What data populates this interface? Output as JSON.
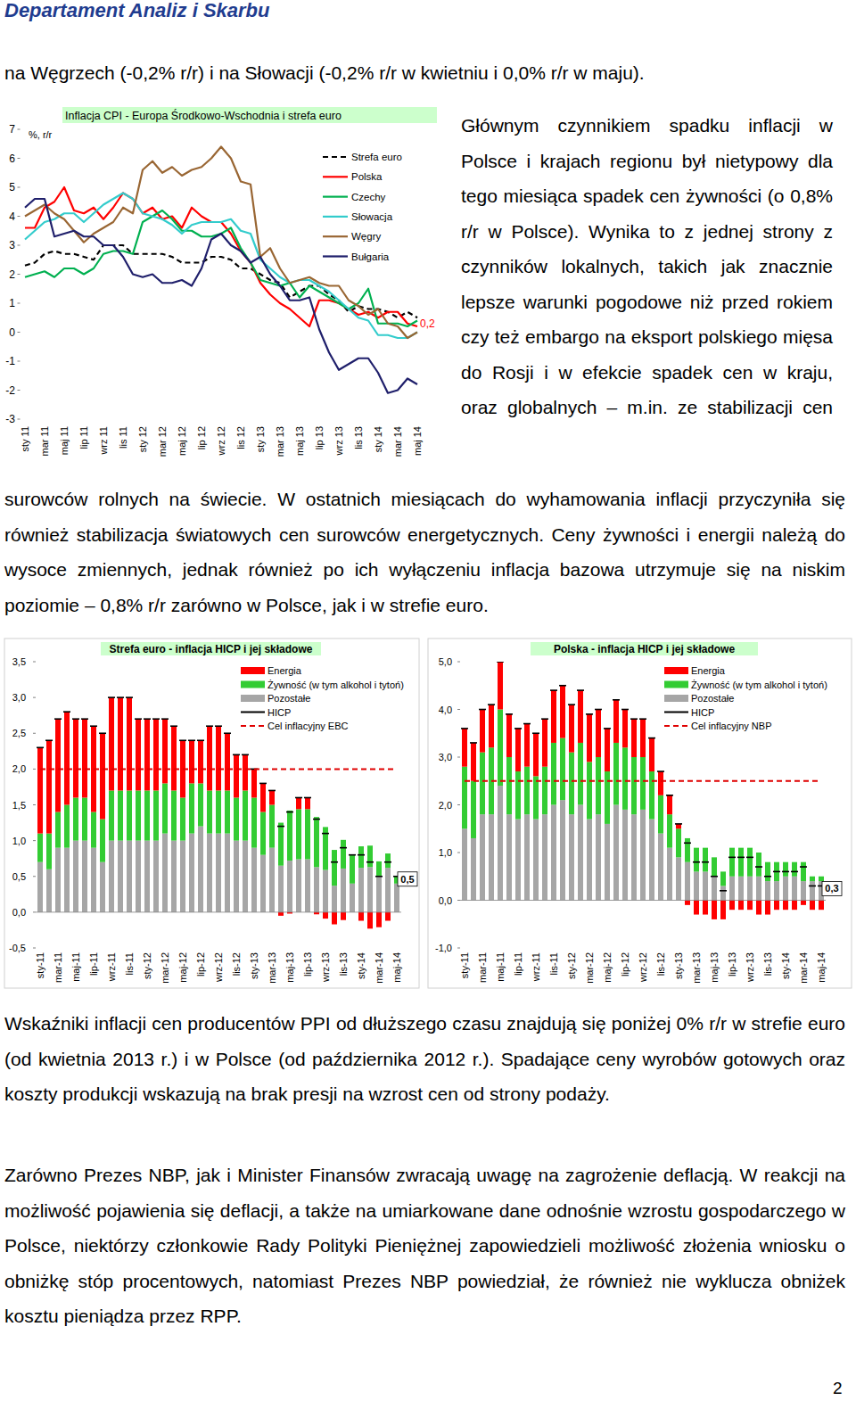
{
  "header": "Departament Analiz i Skarbu",
  "text": {
    "intro": "na Węgrzech (-0,2% r/r) i na Słowacji (-0,2% r/r w kwietniu i 0,0% r/r w maju).",
    "column": "Głównym czynnikiem spadku inflacji w Polsce i krajach regionu był nietypowy dla tego miesiąca spadek cen żywności (o 0,8% r/r w Polsce). Wynika to z jednej strony z czynników lokalnych, takich jak znacznie lepsze warunki pogodowe niż przed rokiem czy też embargo na eksport polskiego mięsa do Rosji i w efekcie spadek cen w kraju, oraz globalnych – m.in. ze stabilizacji cen",
    "continuation": "surowców rolnych na świecie. W ostatnich miesiącach do wyhamowania inflacji przyczyniła się również stabilizacja światowych cen surowców energetycznych. Ceny żywności i energii należą do wysoce zmiennych, jednak również po ich wyłączeniu inflacja bazowa utrzymuje się na niskim poziomie – 0,8% r/r zarówno w Polsce, jak i w strefie euro.",
    "para2": "Wskaźniki inflacji cen producentów PPI od dłuższego czasu znajdują się poniżej 0% r/r w strefie euro (od kwietnia 2013 r.) i w Polsce (od października 2012 r.). Spadające ceny wyrobów gotowych oraz koszty produkcji wskazują na brak presji na wzrost cen od strony podaży.",
    "para3": "Zarówno Prezes NBP, jak i Minister Finansów zwracają uwagę na zagrożenie deflacją. W reakcji na możliwość pojawienia się deflacji, a także na umiarkowane dane odnośnie wzrostu gospodarczego w Polsce, niektórzy członkowie Rady Polityki Pieniężnej zapowiedzieli możliwość złożenia wniosku o obniżkę stóp procentowych, natomiast Prezes NBP powiedział, że również nie wyklucza obniżek kosztu pieniądza przez RPP."
  },
  "page_number": "2",
  "chart_data": [
    {
      "type": "line",
      "title": "Inflacja CPI - Europa Środkowo-Wschodnia i strefa euro",
      "y_label": "%, r/r",
      "grid": false,
      "legend": "upper right",
      "categories": [
        "sty 11",
        null,
        "mar 11",
        null,
        "maj 11",
        null,
        "lip 11",
        null,
        "wrz 11",
        null,
        "lis 11",
        null,
        "sty 12",
        null,
        "mar 12",
        null,
        "maj 12",
        null,
        "lip 12",
        null,
        "wrz 12",
        null,
        "lis 12",
        null,
        "sty 13",
        null,
        "mar 13",
        null,
        "maj 13",
        null,
        "lip 13",
        null,
        "wrz 13",
        null,
        "lis 13",
        null,
        "sty 14",
        null,
        "mar 14",
        null,
        "maj 14"
      ],
      "ylim": [
        -3,
        7
      ],
      "yticks": [
        -3,
        -2,
        -1,
        0,
        1,
        2,
        3,
        4,
        5,
        6,
        7
      ],
      "annotations": [
        "0,2"
      ],
      "series": [
        {
          "name": "Strefa euro",
          "color": "#000000",
          "line_style": "dashed",
          "values": [
            2.3,
            2.4,
            2.7,
            2.8,
            2.7,
            2.7,
            2.6,
            2.5,
            3.0,
            3.0,
            3.0,
            2.7,
            2.7,
            2.7,
            2.7,
            2.6,
            2.4,
            2.4,
            2.4,
            2.6,
            2.6,
            2.5,
            2.2,
            2.2,
            2.0,
            1.8,
            1.7,
            1.2,
            1.4,
            1.6,
            1.6,
            1.3,
            1.1,
            0.7,
            0.9,
            0.8,
            0.8,
            0.7,
            0.5,
            0.7,
            0.5
          ]
        },
        {
          "name": "Polska",
          "color": "#ff0000",
          "line_style": "solid",
          "values": [
            3.6,
            3.6,
            4.3,
            4.5,
            5.0,
            4.2,
            4.1,
            4.3,
            3.9,
            4.3,
            4.8,
            4.6,
            4.1,
            4.3,
            3.9,
            4.0,
            3.6,
            4.3,
            4.0,
            3.8,
            3.8,
            3.4,
            2.8,
            2.4,
            1.7,
            1.3,
            1.0,
            0.8,
            0.5,
            0.2,
            1.1,
            1.1,
            1.0,
            0.8,
            0.6,
            0.7,
            0.5,
            0.7,
            0.7,
            0.3,
            0.2
          ]
        },
        {
          "name": "Czechy",
          "color": "#00b050",
          "line_style": "solid",
          "values": [
            1.9,
            2.0,
            2.1,
            1.9,
            2.2,
            2.2,
            2.0,
            2.2,
            2.7,
            2.8,
            2.8,
            2.7,
            3.8,
            4.0,
            4.2,
            3.9,
            3.5,
            3.5,
            3.3,
            3.3,
            3.4,
            3.6,
            2.9,
            2.4,
            1.8,
            1.7,
            1.6,
            1.7,
            1.2,
            1.6,
            1.4,
            1.2,
            1.0,
            0.8,
            1.0,
            1.5,
            0.3,
            0.3,
            0.3,
            0.2,
            0.4
          ]
        },
        {
          "name": "Słowacja",
          "color": "#33cccc",
          "line_style": "solid",
          "values": [
            3.2,
            3.5,
            3.8,
            3.9,
            4.1,
            4.1,
            3.8,
            4.1,
            4.4,
            4.6,
            4.8,
            4.6,
            4.1,
            4.0,
            3.9,
            3.7,
            3.4,
            3.7,
            3.8,
            3.8,
            3.8,
            3.9,
            3.5,
            3.4,
            2.5,
            2.2,
            1.9,
            1.7,
            1.8,
            1.8,
            1.6,
            1.4,
            1.1,
            0.8,
            0.5,
            0.4,
            -0.1,
            -0.1,
            -0.2,
            -0.2,
            0.0
          ]
        },
        {
          "name": "Węgry",
          "color": "#996633",
          "line_style": "solid",
          "values": [
            4.0,
            4.2,
            4.4,
            4.1,
            3.9,
            3.5,
            3.1,
            3.4,
            3.6,
            3.8,
            4.3,
            4.1,
            5.6,
            5.9,
            5.5,
            5.7,
            5.4,
            5.6,
            5.7,
            6.0,
            6.4,
            6.0,
            5.2,
            5.1,
            2.6,
            2.9,
            2.2,
            1.7,
            1.8,
            1.9,
            1.7,
            1.6,
            1.6,
            1.1,
            0.9,
            0.6,
            0.8,
            0.3,
            0.2,
            -0.2,
            0.0
          ]
        },
        {
          "name": "Bułgaria",
          "color": "#1f1f6b",
          "line_style": "solid",
          "values": [
            4.3,
            4.6,
            4.6,
            3.3,
            3.4,
            3.5,
            3.3,
            3.3,
            3.0,
            3.0,
            2.6,
            2.0,
            1.9,
            2.0,
            1.7,
            1.7,
            1.8,
            1.6,
            2.2,
            3.2,
            3.4,
            3.0,
            2.8,
            2.4,
            2.6,
            2.0,
            1.6,
            1.1,
            1.1,
            1.2,
            0.1,
            -0.7,
            -1.3,
            -1.1,
            -0.9,
            -0.9,
            -1.4,
            -2.1,
            -2.0,
            -1.6,
            -1.8
          ]
        }
      ]
    },
    {
      "type": "bar",
      "stacked": true,
      "title": "Strefa euro - inflacja HICP i jej składowe",
      "grid": false,
      "legend": "upper right",
      "categories": [
        "sty-11",
        null,
        "mar-11",
        null,
        "maj-11",
        null,
        "lip-11",
        null,
        "wrz-11",
        null,
        "lis-11",
        null,
        "sty-12",
        null,
        "mar-12",
        null,
        "maj-12",
        null,
        "lip-12",
        null,
        "wrz-12",
        null,
        "lis-12",
        null,
        "sty-13",
        null,
        "mar-13",
        null,
        "maj-13",
        null,
        "lip-13",
        null,
        "wrz-13",
        null,
        "lis-13",
        null,
        "sty-14",
        null,
        "mar-14",
        null,
        "maj-14"
      ],
      "ylim": [
        -0.5,
        3.5
      ],
      "yticks": [
        {
          "value": -0.5,
          "label": "-0,5"
        },
        {
          "value": 0,
          "label": "0,0"
        },
        {
          "value": 0.5,
          "label": "0,5"
        },
        {
          "value": 1,
          "label": "1,0"
        },
        {
          "value": 1.5,
          "label": "1,5"
        },
        {
          "value": 2,
          "label": "2,0"
        },
        {
          "value": 2.5,
          "label": "2,5"
        },
        {
          "value": 3,
          "label": "3,0"
        },
        {
          "value": 3.5,
          "label": "3,5"
        }
      ],
      "annotations": [
        "0,5"
      ],
      "series": [
        {
          "name": "Energia",
          "color": "#ff0000",
          "values": [
            1.2,
            1.3,
            1.3,
            1.3,
            1.1,
            1.1,
            1.2,
            1.2,
            1.3,
            1.3,
            1.3,
            1.0,
            1.0,
            1.0,
            0.9,
            0.9,
            0.8,
            0.6,
            0.6,
            0.9,
            0.9,
            0.8,
            0.6,
            0.5,
            0.4,
            0.4,
            0.2,
            -0.05,
            -0.02,
            0.16,
            0.16,
            -0.03,
            -0.09,
            -0.17,
            -0.11,
            0.0,
            -0.12,
            -0.23,
            -0.21,
            -0.12,
            0.0
          ]
        },
        {
          "name": "Żywność (w tym alkohol i tytoń)",
          "color": "#33cc33",
          "values": [
            0.4,
            0.5,
            0.5,
            0.6,
            0.6,
            0.6,
            0.5,
            0.6,
            0.7,
            0.7,
            0.7,
            0.7,
            0.7,
            0.7,
            0.7,
            0.7,
            0.6,
            0.7,
            0.6,
            0.6,
            0.6,
            0.6,
            0.6,
            0.7,
            0.7,
            0.6,
            0.6,
            0.6,
            0.7,
            0.7,
            0.7,
            0.7,
            0.6,
            0.5,
            0.4,
            0.4,
            0.3,
            0.3,
            0.2,
            0.2,
            0.1
          ]
        },
        {
          "name": "Pozostałe",
          "color": "#a6a6a6",
          "values": [
            0.7,
            0.6,
            0.9,
            0.9,
            1.0,
            1.0,
            0.9,
            0.7,
            1.0,
            1.0,
            1.0,
            1.0,
            1.0,
            1.0,
            1.1,
            1.0,
            1.0,
            1.1,
            1.2,
            1.1,
            1.1,
            1.1,
            1.0,
            1.0,
            0.9,
            0.8,
            0.9,
            0.65,
            0.72,
            0.74,
            0.74,
            0.63,
            0.59,
            0.37,
            0.61,
            0.4,
            0.62,
            0.63,
            0.51,
            0.62,
            0.4
          ]
        },
        {
          "name": "HICP",
          "type": "scatter",
          "marker": "dash",
          "color": "#000000",
          "values": [
            2.3,
            2.4,
            2.7,
            2.8,
            2.7,
            2.7,
            2.6,
            2.5,
            3.0,
            3.0,
            3.0,
            2.7,
            2.7,
            2.7,
            2.7,
            2.6,
            2.4,
            2.4,
            2.4,
            2.6,
            2.6,
            2.5,
            2.2,
            2.2,
            2.0,
            1.8,
            1.7,
            1.2,
            1.4,
            1.6,
            1.6,
            1.3,
            1.1,
            0.7,
            0.9,
            0.8,
            0.8,
            0.7,
            0.5,
            0.7,
            0.5
          ]
        },
        {
          "name": "Cel inflacyjny EBC",
          "type": "line",
          "line_style": "dashed",
          "color": "#e00000",
          "values": [
            2,
            2,
            2,
            2,
            2,
            2,
            2,
            2,
            2,
            2,
            2,
            2,
            2,
            2,
            2,
            2,
            2,
            2,
            2,
            2,
            2,
            2,
            2,
            2,
            2,
            2,
            2,
            2,
            2,
            2,
            2,
            2,
            2,
            2,
            2,
            2,
            2,
            2,
            2,
            2,
            2
          ]
        }
      ]
    },
    {
      "type": "bar",
      "stacked": true,
      "title": "Polska - inflacja HICP i jej składowe",
      "grid": false,
      "legend": "upper right",
      "categories": [
        "sty-11",
        null,
        "mar-11",
        null,
        "maj-11",
        null,
        "lip-11",
        null,
        "wrz-11",
        null,
        "lis-11",
        null,
        "sty-12",
        null,
        "mar-12",
        null,
        "maj-12",
        null,
        "lip-12",
        null,
        "wrz-12",
        null,
        "lis-12",
        null,
        "sty-13",
        null,
        "mar-13",
        null,
        "maj-13",
        null,
        "lip-13",
        null,
        "wrz-13",
        null,
        "lis-13",
        null,
        "sty-14",
        null,
        "mar-14",
        null,
        "maj-14"
      ],
      "ylim": [
        -1,
        5
      ],
      "yticks": [
        {
          "value": -1,
          "label": "-1,0"
        },
        {
          "value": 0,
          "label": "0,0"
        },
        {
          "value": 1,
          "label": "1,0"
        },
        {
          "value": 2,
          "label": "2,0"
        },
        {
          "value": 3,
          "label": "3,0"
        },
        {
          "value": 4,
          "label": "4,0"
        },
        {
          "value": 5,
          "label": "5,0"
        }
      ],
      "annotations": [
        "0,3"
      ],
      "series": [
        {
          "name": "Energia",
          "color": "#ff0000",
          "values": [
            0.8,
            0.8,
            0.9,
            0.9,
            1.0,
            0.9,
            0.9,
            0.9,
            0.9,
            1.0,
            1.1,
            1.1,
            1.0,
            1.1,
            1.0,
            1.0,
            0.9,
            0.9,
            0.8,
            0.8,
            0.8,
            0.7,
            0.5,
            0.4,
            0.1,
            -0.1,
            -0.3,
            -0.3,
            -0.4,
            -0.4,
            -0.2,
            -0.2,
            -0.2,
            -0.3,
            -0.3,
            -0.2,
            -0.2,
            -0.2,
            -0.1,
            -0.2,
            -0.2
          ]
        },
        {
          "name": "Żywność (w tym alkohol i tytoń)",
          "color": "#33cc33",
          "values": [
            1.3,
            1.2,
            1.3,
            1.4,
            1.6,
            1.2,
            1.0,
            1.0,
            0.9,
            1.0,
            1.3,
            1.3,
            1.3,
            1.3,
            1.2,
            1.2,
            1.1,
            1.3,
            1.3,
            1.2,
            1.1,
            1.0,
            0.8,
            0.7,
            0.6,
            0.5,
            0.5,
            0.5,
            0.4,
            0.3,
            0.6,
            0.6,
            0.6,
            0.5,
            0.4,
            0.4,
            0.3,
            0.3,
            0.4,
            0.1,
            0.1
          ]
        },
        {
          "name": "Pozostałe",
          "color": "#a6a6a6",
          "values": [
            1.5,
            1.3,
            1.8,
            1.8,
            2.4,
            1.8,
            1.7,
            1.8,
            1.7,
            1.8,
            2.0,
            2.1,
            1.8,
            2.0,
            1.7,
            1.8,
            1.6,
            2.0,
            1.9,
            1.8,
            1.9,
            1.7,
            1.4,
            1.1,
            0.9,
            0.8,
            0.6,
            0.6,
            0.5,
            0.3,
            0.5,
            0.5,
            0.5,
            0.5,
            0.4,
            0.4,
            0.5,
            0.5,
            0.4,
            0.4,
            0.4
          ]
        },
        {
          "name": "HICP",
          "type": "scatter",
          "marker": "dash",
          "color": "#000000",
          "values": [
            3.6,
            3.3,
            4.0,
            4.1,
            5.0,
            3.9,
            3.6,
            3.7,
            3.5,
            3.8,
            4.4,
            4.5,
            4.1,
            4.4,
            3.9,
            4.0,
            3.6,
            4.2,
            4.0,
            3.8,
            3.8,
            3.4,
            2.7,
            2.2,
            1.6,
            1.2,
            0.8,
            0.8,
            0.5,
            0.2,
            0.9,
            0.9,
            0.9,
            0.7,
            0.5,
            0.6,
            0.6,
            0.6,
            0.7,
            0.3,
            0.3
          ]
        },
        {
          "name": "Cel inflacyjny NBP",
          "type": "line",
          "line_style": "dashed",
          "color": "#e00000",
          "values": [
            2.5,
            2.5,
            2.5,
            2.5,
            2.5,
            2.5,
            2.5,
            2.5,
            2.5,
            2.5,
            2.5,
            2.5,
            2.5,
            2.5,
            2.5,
            2.5,
            2.5,
            2.5,
            2.5,
            2.5,
            2.5,
            2.5,
            2.5,
            2.5,
            2.5,
            2.5,
            2.5,
            2.5,
            2.5,
            2.5,
            2.5,
            2.5,
            2.5,
            2.5,
            2.5,
            2.5,
            2.5,
            2.5,
            2.5,
            2.5,
            2.5
          ]
        }
      ]
    }
  ]
}
